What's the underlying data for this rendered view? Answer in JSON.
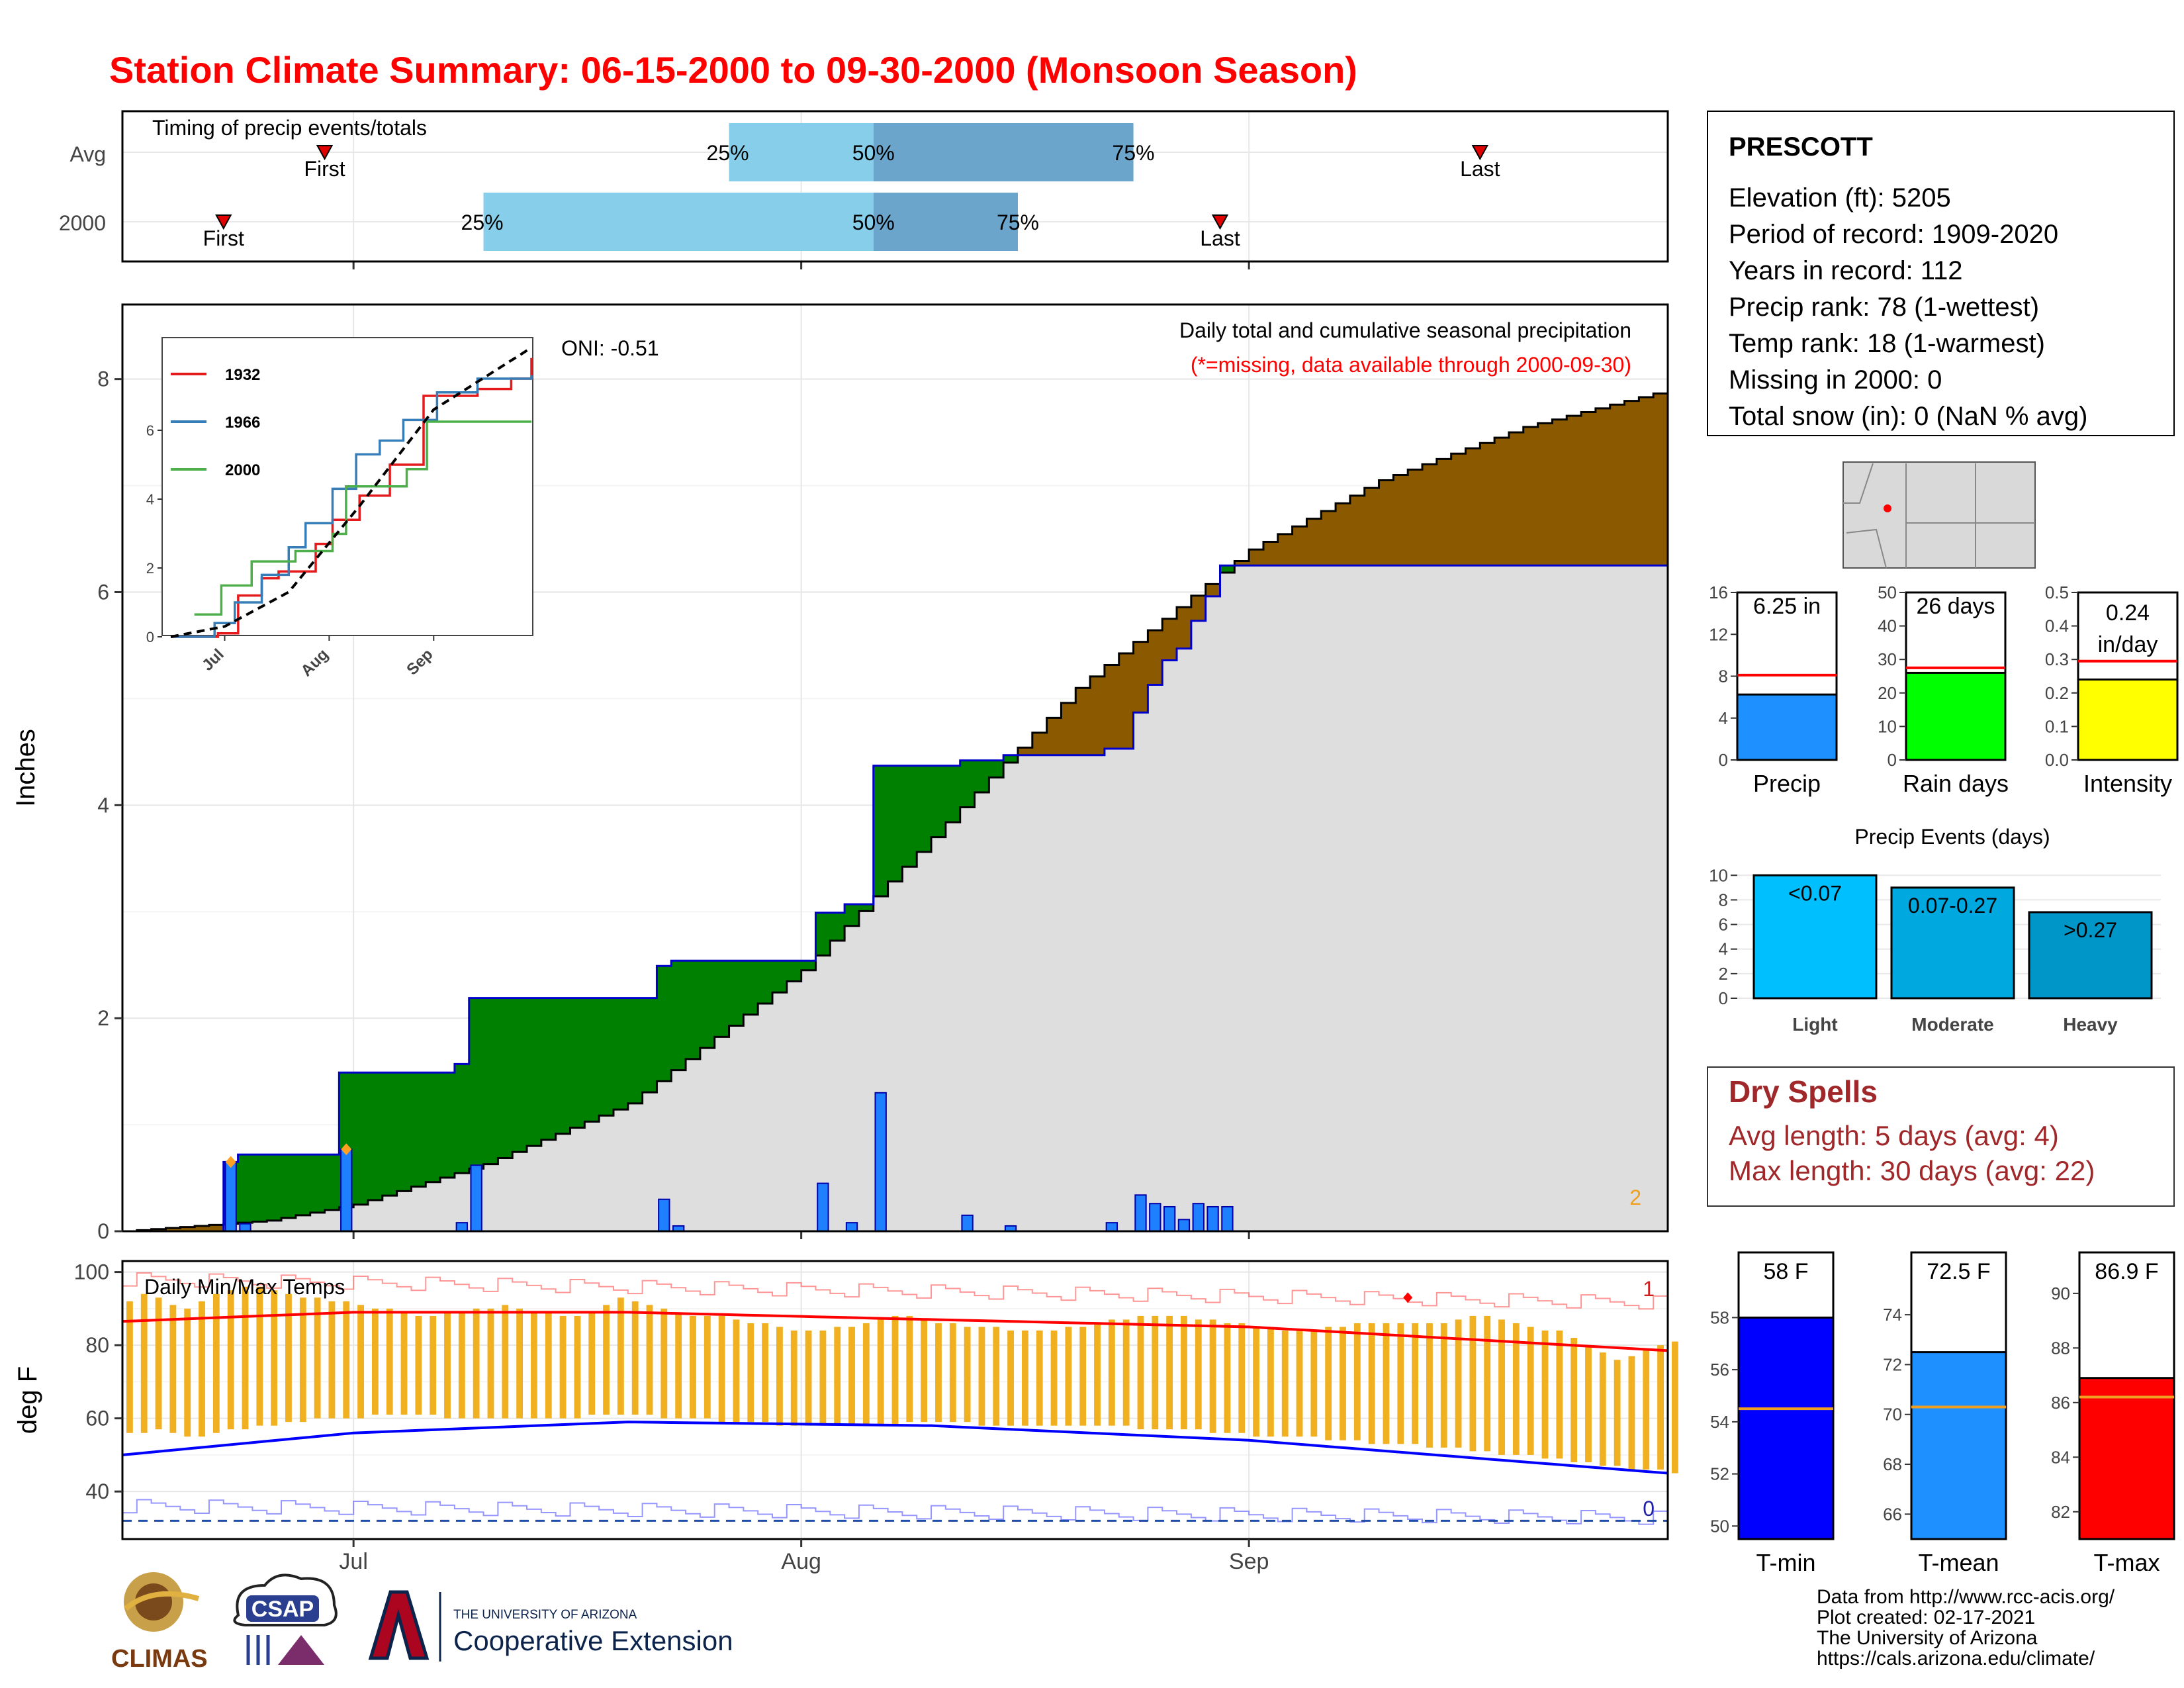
{
  "title": "Station Climate Summary: 06-15-2000 to 09-30-2000 (Monsoon Season)",
  "colors": {
    "title": "#ff0000",
    "cum_area": "#dedede",
    "above_avg": "#008000",
    "below_avg": "#8b5a00",
    "daily_bar": "#1e7fff",
    "tmax_line": "#ff0000",
    "tmin_line": "#0000ff",
    "range_bar": "#f0b020",
    "dry_spells": "#a0282a"
  },
  "timing_panel": {
    "label": "Timing of precip events/totals",
    "rows": [
      "Avg",
      "2000"
    ],
    "first_label": "First",
    "last_label": "Last",
    "pct_labels": [
      "25%",
      "50%",
      "75%"
    ]
  },
  "main_panel": {
    "ylabel": "Inches",
    "annotation": "Daily total and cumulative seasonal precipitation",
    "missing_note": "(*=missing, data available through 2000-09-30)",
    "oni": "ONI: -0.51",
    "corner_count": "2",
    "yticks": [
      "0",
      "2",
      "4",
      "6",
      "8"
    ]
  },
  "inset": {
    "years": [
      "1932",
      "1966",
      "2000"
    ],
    "yticks": [
      "0",
      "2",
      "4",
      "6"
    ],
    "xticks": [
      "Jul",
      "Aug",
      "Sep"
    ]
  },
  "temp_panel": {
    "label": "Daily Min/Max Temps",
    "ylabel": "deg F",
    "yticks": [
      "40",
      "60",
      "80",
      "100"
    ],
    "count_high": "1",
    "count_low": "0"
  },
  "month_ticks": [
    "Jul",
    "Aug",
    "Sep"
  ],
  "station": {
    "name": "PRESCOTT",
    "lines": [
      "Elevation (ft): 5205",
      "Period of record: 1909-2020",
      "Years in record: 112",
      "Precip rank: 78 (1-wettest)",
      "Temp rank: 18 (1-warmest)",
      "Missing in 2000: 0",
      "Total snow (in): 0 (NaN % avg)"
    ]
  },
  "summary_bars": [
    {
      "label": "Precip",
      "value_text": "6.25 in",
      "ticks": [
        "0",
        "4",
        "8",
        "12",
        "16"
      ]
    },
    {
      "label": "Rain days",
      "value_text": "26 days",
      "ticks": [
        "0",
        "10",
        "20",
        "30",
        "40",
        "50"
      ]
    },
    {
      "label": "Intensity",
      "value_text": "0.24",
      "value_text2": "in/day",
      "ticks": [
        "0.0",
        "0.1",
        "0.2",
        "0.3",
        "0.4",
        "0.5"
      ]
    }
  ],
  "precip_events": {
    "title": "Precip Events (days)",
    "ticks": [
      "0",
      "2",
      "4",
      "6",
      "8",
      "10"
    ]
  },
  "dry_spells": {
    "title": "Dry Spells",
    "avg_length": "Avg length: 5 days (avg: 4)",
    "max_length": "Max length: 30 days (avg: 22)"
  },
  "temp_bars": [
    {
      "label": "T-min",
      "value_text": "58 F",
      "ticks": [
        "50",
        "52",
        "54",
        "56",
        "58"
      ]
    },
    {
      "label": "T-mean",
      "value_text": "72.5 F",
      "ticks": [
        "66",
        "68",
        "70",
        "72",
        "74"
      ]
    },
    {
      "label": "T-max",
      "value_text": "86.9 F",
      "ticks": [
        "82",
        "84",
        "86",
        "88",
        "90"
      ]
    }
  ],
  "footer": {
    "lines": [
      "Data from http://www.rcc-acis.org/",
      "Plot created: 02-17-2021",
      "The University of Arizona",
      "https://cals.arizona.edu/climate/"
    ],
    "logo_climas": "CLIMAS",
    "logo_csap": "CSAP",
    "logo_ua_small": "THE UNIVERSITY OF ARIZONA",
    "logo_ua_big": "Cooperative Extension"
  },
  "chart_data": [
    {
      "type": "bar",
      "title": "Timing of precip events/totals",
      "categories": [
        "Avg",
        "2000"
      ],
      "series": [
        {
          "name": "First",
          "values": [
            "2000-06-29",
            "2000-06-22"
          ]
        },
        {
          "name": "25%",
          "values": [
            "2000-07-27",
            "2000-07-10"
          ]
        },
        {
          "name": "50%",
          "values": [
            "2000-08-06",
            "2000-08-06"
          ]
        },
        {
          "name": "75%",
          "values": [
            "2000-08-24",
            "2000-08-16"
          ]
        },
        {
          "name": "Last",
          "values": [
            "2000-09-17",
            "2000-08-30"
          ]
        }
      ]
    },
    {
      "type": "area",
      "title": "Daily total and cumulative seasonal precipitation",
      "ylabel": "Inches",
      "ylim": [
        0,
        8.7
      ],
      "x_range": [
        "2000-06-15",
        "2000-09-30"
      ],
      "cumulative_2000": {
        "dates": [
          "2000-06-22",
          "2000-06-23",
          "2000-06-28",
          "2000-06-30",
          "2000-07-08",
          "2000-07-09",
          "2000-07-22",
          "2000-07-23",
          "2000-08-01",
          "2000-08-02",
          "2000-08-04",
          "2000-08-05",
          "2000-08-06",
          "2000-08-12",
          "2000-08-15",
          "2000-08-17",
          "2000-08-22",
          "2000-08-24",
          "2000-08-25",
          "2000-08-26",
          "2000-08-27",
          "2000-08-28",
          "2000-08-29",
          "2000-08-30"
        ],
        "values": [
          0.65,
          0.72,
          0.72,
          1.49,
          1.57,
          2.19,
          2.49,
          2.54,
          2.54,
          2.99,
          3.07,
          3.07,
          4.37,
          4.42,
          4.47,
          4.47,
          4.53,
          4.87,
          5.13,
          5.36,
          5.47,
          5.73,
          5.96,
          6.25
        ]
      },
      "daily_2000": {
        "dates": [
          "2000-06-22",
          "2000-06-23",
          "2000-06-30",
          "2000-07-08",
          "2000-07-09",
          "2000-07-22",
          "2000-07-23",
          "2000-08-02",
          "2000-08-04",
          "2000-08-06",
          "2000-08-12",
          "2000-08-15",
          "2000-08-22",
          "2000-08-24",
          "2000-08-25",
          "2000-08-26",
          "2000-08-27",
          "2000-08-28",
          "2000-08-29",
          "2000-08-30"
        ],
        "values": [
          0.65,
          0.07,
          0.77,
          0.08,
          0.62,
          0.3,
          0.05,
          0.45,
          0.08,
          1.3,
          0.15,
          0.05,
          0.08,
          0.34,
          0.26,
          0.23,
          0.11,
          0.26,
          0.23,
          0.23
        ]
      },
      "average_cumulative": {
        "dates": [
          "2000-06-15",
          "2000-06-25",
          "2000-07-01",
          "2000-07-10",
          "2000-07-20",
          "2000-08-01",
          "2000-08-10",
          "2000-08-20",
          "2000-09-01",
          "2000-09-10",
          "2000-09-20",
          "2000-09-30"
        ],
        "values": [
          0.0,
          0.1,
          0.25,
          0.63,
          1.2,
          2.45,
          3.7,
          5.1,
          6.4,
          7.05,
          7.55,
          7.9
        ]
      },
      "annotations": [
        "ONI: -0.51",
        "(*=missing, data available through 2000-09-30)"
      ]
    },
    {
      "type": "line",
      "title": "",
      "xlabel": "",
      "ylabel": "",
      "ylim": [
        0,
        8.5
      ],
      "x_range": [
        "2000-06-15",
        "2000-09-30"
      ],
      "series": [
        {
          "name": "1932",
          "dates": [
            "2000-06-15",
            "2000-06-29",
            "2000-07-05",
            "2000-07-12",
            "2000-07-17",
            "2000-07-28",
            "2000-08-02",
            "2000-08-10",
            "2000-08-19",
            "2000-08-29",
            "2000-09-14",
            "2000-09-24",
            "2000-09-30"
          ],
          "values": [
            0,
            0.1,
            1.2,
            1.7,
            1.9,
            2.7,
            3.4,
            4.1,
            5.0,
            7.0,
            7.2,
            7.5,
            8.1
          ]
        },
        {
          "name": "1966",
          "dates": [
            "2000-06-15",
            "2000-06-28",
            "2000-07-04",
            "2000-07-12",
            "2000-07-20",
            "2000-07-25",
            "2000-08-02",
            "2000-08-09",
            "2000-08-16",
            "2000-08-23",
            "2000-09-02",
            "2000-09-14",
            "2000-09-30"
          ],
          "values": [
            0,
            0.4,
            1.0,
            1.8,
            2.6,
            3.3,
            4.3,
            5.3,
            5.7,
            6.3,
            7.1,
            7.5,
            7.6
          ]
        },
        {
          "name": "2000",
          "dates": [
            "2000-06-22",
            "2000-06-30",
            "2000-07-09",
            "2000-07-22",
            "2000-08-02",
            "2000-08-06",
            "2000-08-24",
            "2000-08-30",
            "2000-09-30"
          ],
          "values": [
            0.65,
            1.49,
            2.19,
            2.49,
            2.99,
            4.37,
            4.87,
            6.25,
            6.25
          ]
        },
        {
          "name": "Average",
          "dates": [
            "2000-06-15",
            "2000-07-01",
            "2000-07-20",
            "2000-08-10",
            "2000-09-01",
            "2000-09-30"
          ],
          "values": [
            0,
            0.3,
            1.3,
            3.8,
            6.6,
            8.4
          ]
        }
      ]
    },
    {
      "type": "line",
      "title": "Daily Min/Max Temps",
      "ylabel": "deg F",
      "ylim": [
        27,
        103
      ],
      "x_range": [
        "2000-06-15",
        "2000-09-30"
      ],
      "series": [
        {
          "name": "Daily range 2000",
          "tmax": [
            92,
            94,
            93,
            91,
            90,
            92,
            94,
            95,
            96,
            96,
            95,
            94,
            93,
            93,
            92,
            92,
            91,
            90,
            90,
            89,
            88,
            88,
            89,
            89,
            90,
            90,
            91,
            90,
            89,
            89,
            88,
            88,
            89,
            91,
            93,
            92,
            91,
            90,
            89,
            88,
            88,
            88,
            87,
            86,
            86,
            85,
            84,
            84,
            84,
            85,
            85,
            86,
            87,
            88,
            88,
            87,
            86,
            86,
            85,
            85,
            85,
            84,
            84,
            84,
            84,
            85,
            85,
            86,
            87,
            87,
            88,
            88,
            88,
            88,
            87,
            87,
            86,
            86,
            85,
            85,
            84,
            84,
            84,
            85,
            85,
            86,
            86,
            86,
            86,
            86,
            86,
            86,
            87,
            88,
            88,
            87,
            86,
            85,
            84,
            84,
            82,
            80,
            78,
            76,
            77,
            79,
            80,
            81
          ],
          "tmin": [
            56,
            56,
            57,
            56,
            55,
            55,
            56,
            57,
            57,
            58,
            58,
            59,
            59,
            60,
            60,
            60,
            60,
            61,
            61,
            61,
            61,
            61,
            60,
            60,
            60,
            60,
            60,
            60,
            60,
            60,
            60,
            60,
            61,
            61,
            61,
            61,
            61,
            60,
            60,
            60,
            60,
            59,
            59,
            59,
            59,
            58,
            58,
            58,
            58,
            58,
            58,
            58,
            58,
            58,
            59,
            59,
            59,
            59,
            59,
            58,
            58,
            58,
            58,
            58,
            58,
            58,
            58,
            58,
            58,
            58,
            57,
            57,
            57,
            57,
            57,
            56,
            56,
            56,
            55,
            55,
            55,
            55,
            55,
            54,
            54,
            54,
            53,
            53,
            53,
            53,
            52,
            52,
            52,
            51,
            51,
            50,
            50,
            50,
            49,
            49,
            48,
            48,
            47,
            47,
            46,
            46,
            46,
            45
          ]
        },
        {
          "name": "Avg max",
          "dates": [
            "2000-06-15",
            "2000-07-01",
            "2000-07-20",
            "2000-08-10",
            "2000-09-01",
            "2000-09-30"
          ],
          "values": [
            86.5,
            89,
            89,
            87,
            85,
            78.5
          ]
        },
        {
          "name": "Avg min",
          "dates": [
            "2000-06-15",
            "2000-07-01",
            "2000-07-20",
            "2000-08-10",
            "2000-09-01",
            "2000-09-30"
          ],
          "values": [
            50,
            56,
            59,
            58,
            54,
            45
          ]
        }
      ]
    },
    {
      "type": "bar",
      "title": "",
      "categories": [
        "Precip",
        "Rain days",
        "Intensity"
      ],
      "series": [
        {
          "name": "2000",
          "values": [
            6.25,
            26,
            0.24
          ]
        },
        {
          "name": "Average",
          "values": [
            8.1,
            27.5,
            0.295
          ]
        }
      ],
      "ylim": [
        [
          0,
          16
        ],
        [
          0,
          50
        ],
        [
          0,
          0.5
        ]
      ]
    },
    {
      "type": "bar",
      "title": "Precip Events (days)",
      "categories": [
        "Light",
        "Moderate",
        "Heavy"
      ],
      "series": [
        {
          "name": "",
          "values": [
            10,
            9,
            7
          ]
        }
      ],
      "bar_labels": [
        "<0.07",
        "0.07-0.27",
        ">0.27"
      ],
      "ylim": [
        0,
        10.5
      ]
    },
    {
      "type": "bar",
      "title": "",
      "categories": [
        "T-min",
        "T-mean",
        "T-max"
      ],
      "series": [
        {
          "name": "2000",
          "values": [
            58,
            72.5,
            86.9
          ]
        },
        {
          "name": "Average",
          "values": [
            54.5,
            70.3,
            86.2
          ]
        }
      ],
      "ylim": [
        [
          49.5,
          60.5
        ],
        [
          65,
          76.5
        ],
        [
          81,
          91.5
        ]
      ]
    }
  ]
}
